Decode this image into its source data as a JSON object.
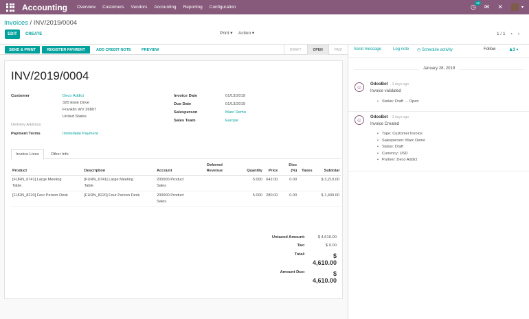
{
  "navbar": {
    "brand": "Accounting",
    "menu": [
      "Overview",
      "Customers",
      "Vendors",
      "Accounting",
      "Reporting",
      "Configuration"
    ],
    "activity_count": "12"
  },
  "control": {
    "breadcrumb_parent": "Invoices",
    "breadcrumb_sep": "/",
    "breadcrumb_current": "INV/2019/0004",
    "edit_label": "EDIT",
    "create_label": "CREATE",
    "print_label": "Print",
    "action_label": "Action",
    "pager": "1 / 1"
  },
  "statusbar": {
    "send_print": "SEND & PRINT",
    "register_payment": "REGISTER PAYMENT",
    "add_credit_note": "ADD CREDIT NOTE",
    "preview": "PREVIEW",
    "states": [
      "DRAFT",
      "OPEN",
      "PAID"
    ],
    "active_state": "OPEN"
  },
  "invoice": {
    "number": "INV/2019/0004",
    "customer_label": "Customer",
    "customer_name": "Deco Addict",
    "address_line1": "325 Elsie Drive",
    "address_line2": "Franklin WV 26807",
    "address_line3": "United States",
    "delivery_label": "Delivery Address",
    "payment_terms_label": "Payment Terms",
    "payment_terms": "Immediate Payment",
    "invoice_date_label": "Invoice Date",
    "invoice_date": "01/13/2019",
    "due_date_label": "Due Date",
    "due_date": "01/13/2019",
    "salesperson_label": "Salesperson",
    "salesperson": "Marc Demo",
    "sales_team_label": "Sales Team",
    "sales_team": "Europe"
  },
  "tabs": [
    "Invoice Lines",
    "Other Info"
  ],
  "lines": {
    "headers": {
      "product": "Product",
      "description": "Description",
      "account": "Account",
      "deferred_a": "Deferred",
      "deferred_b": "Revenue",
      "quantity": "Quantity",
      "price": "Price",
      "disc_a": "Disc",
      "disc_b": "(%)",
      "taxes": "Taxes",
      "subtotal": "Subtotal"
    },
    "rows": [
      {
        "product_a": "[FURN_6741] Large Meeting",
        "product_b": "Table",
        "description_a": "[FURN_6741] Large Meeting",
        "description_b": "Table",
        "account_a": "200000 Product",
        "account_b": "Sales",
        "quantity": "5.000",
        "price": "642.00",
        "discount": "0.00",
        "subtotal": "$ 3,210.00"
      },
      {
        "product_a": "[FURN_8220] Four Person Desk",
        "product_b": "",
        "description_a": "[FURN_8220] Four Person Desk",
        "description_b": "",
        "account_a": "200000 Product",
        "account_b": "Sales",
        "quantity": "5.000",
        "price": "280.00",
        "discount": "0.00",
        "subtotal": "$ 1,400.00"
      }
    ]
  },
  "totals": {
    "untaxed_label": "Untaxed Amount:",
    "untaxed": "$ 4,610.00",
    "tax_label": "Tax:",
    "tax": "$ 0.00",
    "total_label": "Total:",
    "total": "$ 4,610.00",
    "amount_due_label": "Amount Due:",
    "amount_due": "$ 4,610.00"
  },
  "chatter": {
    "send_message": "Send message",
    "log_note": "Log note",
    "schedule_activity": "Schedule activity",
    "follow": "Follow",
    "followers": "3",
    "date": "January 28, 2019",
    "messages": [
      {
        "author": "OdooBot",
        "date": "- 3 days ago",
        "body": "Invoice validated",
        "items": [
          "Status: Draft → Open"
        ]
      },
      {
        "author": "OdooBot",
        "date": "- 3 days ago",
        "body": "Invoice Created",
        "items": [
          "Type: Customer Invoice",
          "Salesperson: Marc Demo",
          "Status: Draft",
          "Currency: USD",
          "Partner: Deco Addict"
        ]
      }
    ]
  }
}
